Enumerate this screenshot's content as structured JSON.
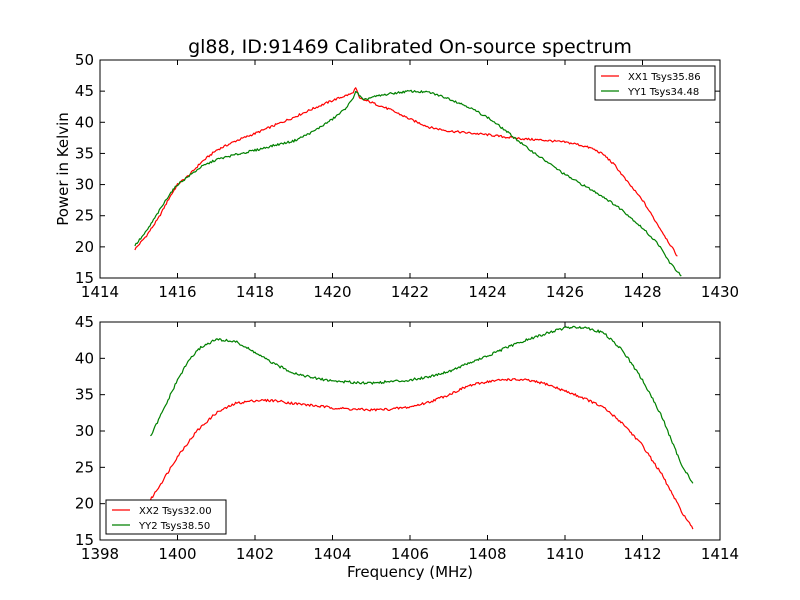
{
  "chart_data": [
    {
      "type": "line",
      "title": "gl88, ID:91469 Calibrated On-source spectrum",
      "xlabel": "",
      "ylabel": "Power in Kelvin",
      "xlim": [
        1414,
        1430
      ],
      "ylim": [
        15,
        50
      ],
      "xticks": [
        1414,
        1416,
        1418,
        1420,
        1422,
        1424,
        1426,
        1428,
        1430
      ],
      "yticks": [
        15,
        20,
        25,
        30,
        35,
        40,
        45,
        50
      ],
      "grid": false,
      "legend_position": "top-right",
      "series": [
        {
          "name": "XX1 Tsys35.86",
          "color": "#ff0000",
          "points": [
            [
              1414.9,
              19.6
            ],
            [
              1415.2,
              21.8
            ],
            [
              1415.5,
              24.5
            ],
            [
              1415.8,
              28.0
            ],
            [
              1416.0,
              30.0
            ],
            [
              1416.3,
              31.5
            ],
            [
              1416.6,
              33.5
            ],
            [
              1417.0,
              35.5
            ],
            [
              1417.5,
              37.0
            ],
            [
              1418.0,
              38.2
            ],
            [
              1418.5,
              39.5
            ],
            [
              1419.0,
              40.8
            ],
            [
              1419.5,
              42.2
            ],
            [
              1420.0,
              43.5
            ],
            [
              1420.3,
              44.2
            ],
            [
              1420.5,
              44.6
            ],
            [
              1420.6,
              45.5
            ],
            [
              1420.7,
              43.8
            ],
            [
              1421.0,
              43.2
            ],
            [
              1421.5,
              42.0
            ],
            [
              1422.0,
              40.5
            ],
            [
              1422.5,
              39.2
            ],
            [
              1423.0,
              38.6
            ],
            [
              1423.5,
              38.3
            ],
            [
              1424.0,
              38.0
            ],
            [
              1424.5,
              37.6
            ],
            [
              1425.0,
              37.3
            ],
            [
              1425.5,
              37.1
            ],
            [
              1426.0,
              36.8
            ],
            [
              1426.3,
              36.5
            ],
            [
              1426.7,
              35.8
            ],
            [
              1427.0,
              34.8
            ],
            [
              1427.3,
              33.0
            ],
            [
              1427.6,
              30.5
            ],
            [
              1428.0,
              27.5
            ],
            [
              1428.3,
              24.5
            ],
            [
              1428.6,
              21.5
            ],
            [
              1428.9,
              18.5
            ]
          ]
        },
        {
          "name": "YY1 Tsys34.48",
          "color": "#008000",
          "points": [
            [
              1414.9,
              20.2
            ],
            [
              1415.2,
              22.5
            ],
            [
              1415.5,
              25.5
            ],
            [
              1415.8,
              28.5
            ],
            [
              1416.0,
              30.0
            ],
            [
              1416.3,
              31.4
            ],
            [
              1416.6,
              32.8
            ],
            [
              1417.0,
              34.0
            ],
            [
              1417.5,
              34.8
            ],
            [
              1418.0,
              35.5
            ],
            [
              1418.5,
              36.3
            ],
            [
              1419.0,
              37.0
            ],
            [
              1419.5,
              38.5
            ],
            [
              1420.0,
              40.5
            ],
            [
              1420.3,
              42.0
            ],
            [
              1420.5,
              43.5
            ],
            [
              1420.6,
              45.0
            ],
            [
              1420.8,
              43.5
            ],
            [
              1421.0,
              44.0
            ],
            [
              1421.5,
              44.6
            ],
            [
              1422.0,
              45.0
            ],
            [
              1422.5,
              44.8
            ],
            [
              1423.0,
              43.8
            ],
            [
              1423.5,
              42.5
            ],
            [
              1424.0,
              40.8
            ],
            [
              1424.5,
              38.5
            ],
            [
              1425.0,
              36.0
            ],
            [
              1425.5,
              33.8
            ],
            [
              1426.0,
              31.6
            ],
            [
              1426.5,
              29.8
            ],
            [
              1427.0,
              28.0
            ],
            [
              1427.5,
              25.8
            ],
            [
              1428.0,
              23.0
            ],
            [
              1428.4,
              20.5
            ],
            [
              1428.7,
              17.5
            ],
            [
              1429.0,
              15.3
            ]
          ]
        }
      ]
    },
    {
      "type": "line",
      "title": "",
      "xlabel": "Frequency (MHz)",
      "ylabel": "",
      "xlim": [
        1398,
        1414
      ],
      "ylim": [
        15,
        45
      ],
      "xticks": [
        1398,
        1400,
        1402,
        1404,
        1406,
        1408,
        1410,
        1412,
        1414
      ],
      "yticks": [
        15,
        20,
        25,
        30,
        35,
        40,
        45
      ],
      "grid": false,
      "legend_position": "bottom-left",
      "series": [
        {
          "name": "XX2 Tsys32.00",
          "color": "#ff0000",
          "points": [
            [
              1399.3,
              20.5
            ],
            [
              1399.6,
              23.0
            ],
            [
              1400.0,
              26.5
            ],
            [
              1400.5,
              30.0
            ],
            [
              1401.0,
              32.5
            ],
            [
              1401.5,
              33.8
            ],
            [
              1402.0,
              34.2
            ],
            [
              1402.5,
              34.2
            ],
            [
              1403.0,
              33.8
            ],
            [
              1403.5,
              33.5
            ],
            [
              1404.0,
              33.2
            ],
            [
              1404.5,
              33.0
            ],
            [
              1405.0,
              32.9
            ],
            [
              1405.5,
              33.0
            ],
            [
              1406.0,
              33.3
            ],
            [
              1406.5,
              34.0
            ],
            [
              1407.0,
              35.0
            ],
            [
              1407.5,
              36.2
            ],
            [
              1408.0,
              36.8
            ],
            [
              1408.5,
              37.1
            ],
            [
              1409.0,
              37.0
            ],
            [
              1409.5,
              36.5
            ],
            [
              1410.0,
              35.5
            ],
            [
              1410.5,
              34.5
            ],
            [
              1411.0,
              33.2
            ],
            [
              1411.5,
              31.0
            ],
            [
              1412.0,
              28.0
            ],
            [
              1412.5,
              24.0
            ],
            [
              1413.0,
              19.0
            ],
            [
              1413.3,
              16.5
            ]
          ]
        },
        {
          "name": "YY2 Tsys38.50",
          "color": "#008000",
          "points": [
            [
              1399.3,
              29.2
            ],
            [
              1399.6,
              32.5
            ],
            [
              1400.0,
              37.0
            ],
            [
              1400.3,
              39.8
            ],
            [
              1400.6,
              41.5
            ],
            [
              1401.0,
              42.6
            ],
            [
              1401.5,
              42.3
            ],
            [
              1402.0,
              40.8
            ],
            [
              1402.5,
              39.2
            ],
            [
              1403.0,
              38.0
            ],
            [
              1403.5,
              37.3
            ],
            [
              1404.0,
              36.9
            ],
            [
              1404.5,
              36.7
            ],
            [
              1405.0,
              36.6
            ],
            [
              1405.5,
              36.8
            ],
            [
              1406.0,
              37.0
            ],
            [
              1406.5,
              37.5
            ],
            [
              1407.0,
              38.2
            ],
            [
              1407.5,
              39.3
            ],
            [
              1408.0,
              40.3
            ],
            [
              1408.5,
              41.5
            ],
            [
              1409.0,
              42.5
            ],
            [
              1409.5,
              43.4
            ],
            [
              1410.0,
              44.2
            ],
            [
              1410.5,
              44.3
            ],
            [
              1411.0,
              43.5
            ],
            [
              1411.5,
              41.0
            ],
            [
              1412.0,
              37.0
            ],
            [
              1412.5,
              32.0
            ],
            [
              1412.8,
              28.0
            ],
            [
              1413.0,
              25.5
            ],
            [
              1413.3,
              22.8
            ]
          ]
        }
      ]
    }
  ]
}
